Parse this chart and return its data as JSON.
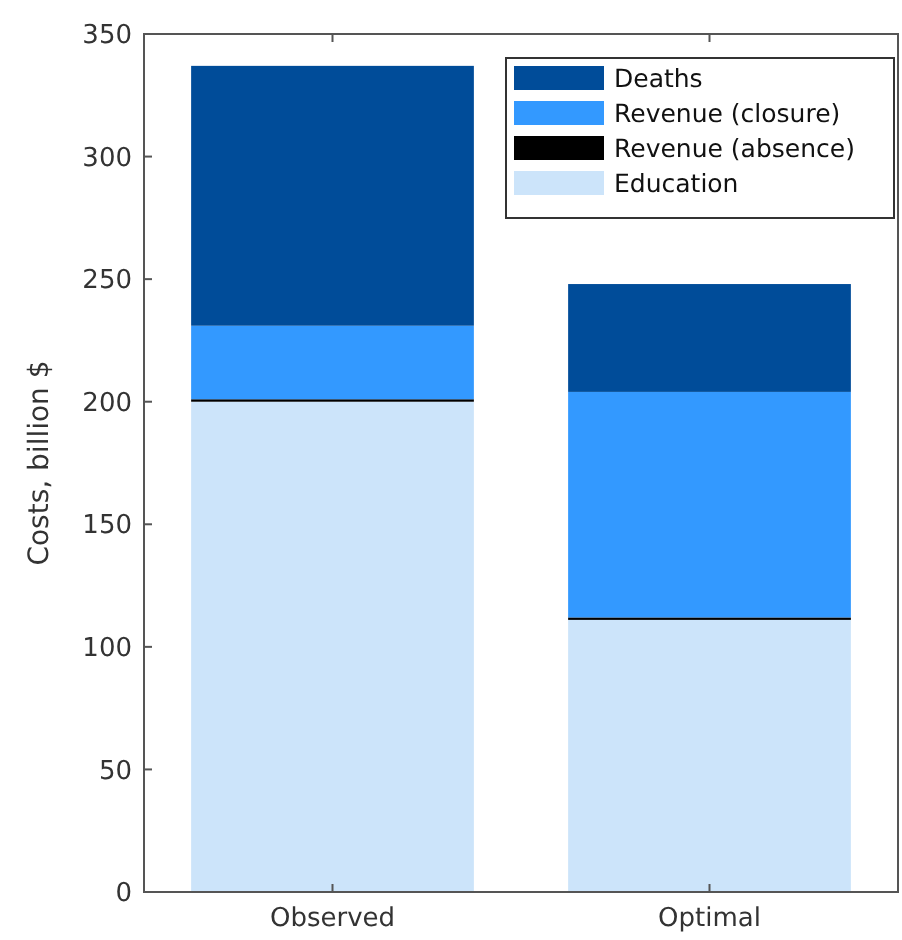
{
  "chart_data": {
    "type": "bar",
    "stacked": true,
    "ylabel": "Costs, billion $",
    "categories": [
      "Observed",
      "Optimal"
    ],
    "series": [
      {
        "name": "Education",
        "color": "#cce4fa",
        "values": [
          200,
          111
        ]
      },
      {
        "name": "Revenue (absence)",
        "color": "#000000",
        "values": [
          1,
          1
        ]
      },
      {
        "name": "Revenue (closure)",
        "color": "#3399ff",
        "values": [
          30,
          92
        ]
      },
      {
        "name": "Deaths",
        "color": "#004c99",
        "values": [
          106,
          44
        ]
      }
    ],
    "ylim": [
      0,
      350
    ],
    "yticks": [
      0,
      50,
      100,
      150,
      200,
      250,
      300,
      350
    ],
    "grid": false,
    "legend": "top right"
  }
}
